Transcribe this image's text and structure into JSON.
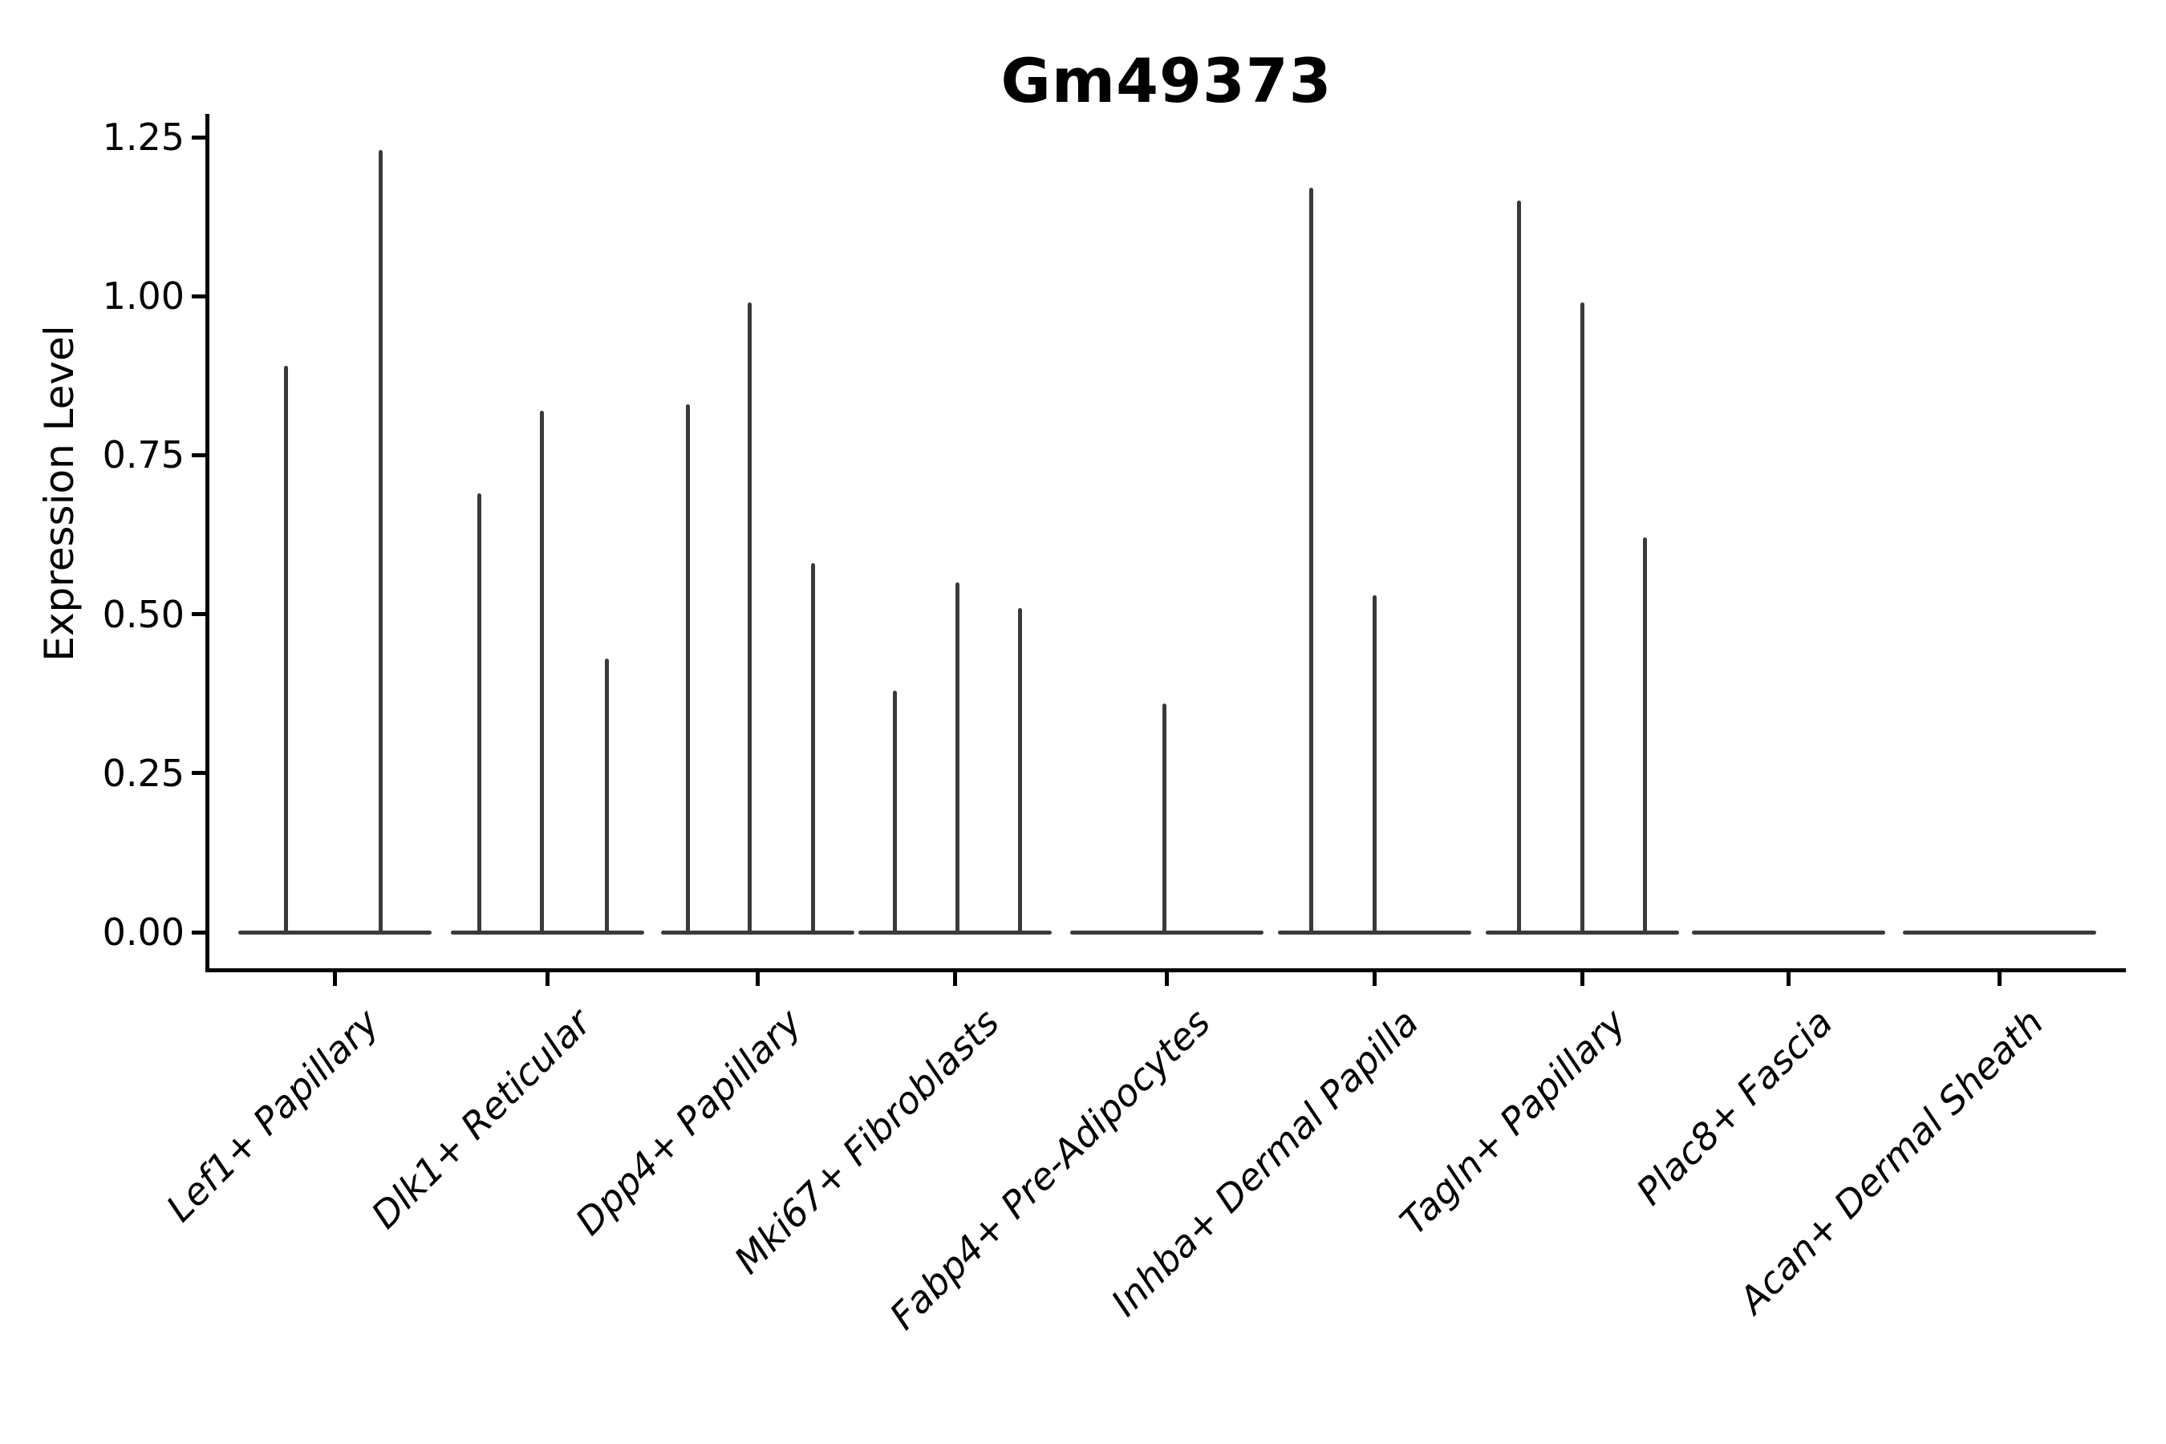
{
  "figure": {
    "title": "Gm49373",
    "background_color": "#ffffff",
    "axis_color": "#000000",
    "violin_color": "#3a3a3a"
  },
  "chart_data": {
    "type": "violin",
    "title": "Gm49373",
    "xlabel": "",
    "ylabel": "Expression Level",
    "ylim": [
      0,
      1.29
    ],
    "yticks": [
      "0.00",
      "0.25",
      "0.50",
      "0.75",
      "1.00",
      "1.25"
    ],
    "grid": false,
    "legend": "none",
    "x_tick_style": "rotated-45-italic",
    "categories": [
      "Lef1+ Papillary",
      "Dlk1+ Reticular",
      "Dpp4+ Papillary",
      "Mki67+ Fibroblasts",
      "Fabp4+ Pre-Adipocytes",
      "Inhba+ Dermal Papilla",
      "Tagln+ Papillary",
      "Plac8+ Fascia",
      "Acan+ Dermal Sheath"
    ],
    "series": [
      {
        "category": "Lef1+ Papillary",
        "spikes": [
          {
            "pos": 0.25,
            "peak": 0.89
          },
          {
            "pos": 0.74,
            "peak": 1.23
          }
        ]
      },
      {
        "category": "Dlk1+ Reticular",
        "spikes": [
          {
            "pos": 0.15,
            "peak": 0.69
          },
          {
            "pos": 0.475,
            "peak": 0.82
          },
          {
            "pos": 0.81,
            "peak": 0.43
          }
        ]
      },
      {
        "category": "Dpp4+ Papillary",
        "spikes": [
          {
            "pos": 0.14,
            "peak": 0.83
          },
          {
            "pos": 0.46,
            "peak": 0.99
          },
          {
            "pos": 0.79,
            "peak": 0.58
          }
        ]
      },
      {
        "category": "Mki67+ Fibroblasts",
        "spikes": [
          {
            "pos": 0.19,
            "peak": 0.38
          },
          {
            "pos": 0.515,
            "peak": 0.55
          },
          {
            "pos": 0.84,
            "peak": 0.51
          }
        ]
      },
      {
        "category": "Fabp4+ Pre-Adipocytes",
        "spikes": [
          {
            "pos": 0.49,
            "peak": 0.36
          }
        ]
      },
      {
        "category": "Inhba+ Dermal Papilla",
        "spikes": [
          {
            "pos": 0.175,
            "peak": 1.17
          },
          {
            "pos": 0.5,
            "peak": 0.53
          }
        ]
      },
      {
        "category": "Tagln+ Papillary",
        "spikes": [
          {
            "pos": 0.175,
            "peak": 1.15
          },
          {
            "pos": 0.5,
            "peak": 0.99
          },
          {
            "pos": 0.825,
            "peak": 0.62
          }
        ]
      },
      {
        "category": "Plac8+ Fascia",
        "spikes": []
      },
      {
        "category": "Acan+ Dermal Sheath",
        "spikes": []
      }
    ]
  }
}
